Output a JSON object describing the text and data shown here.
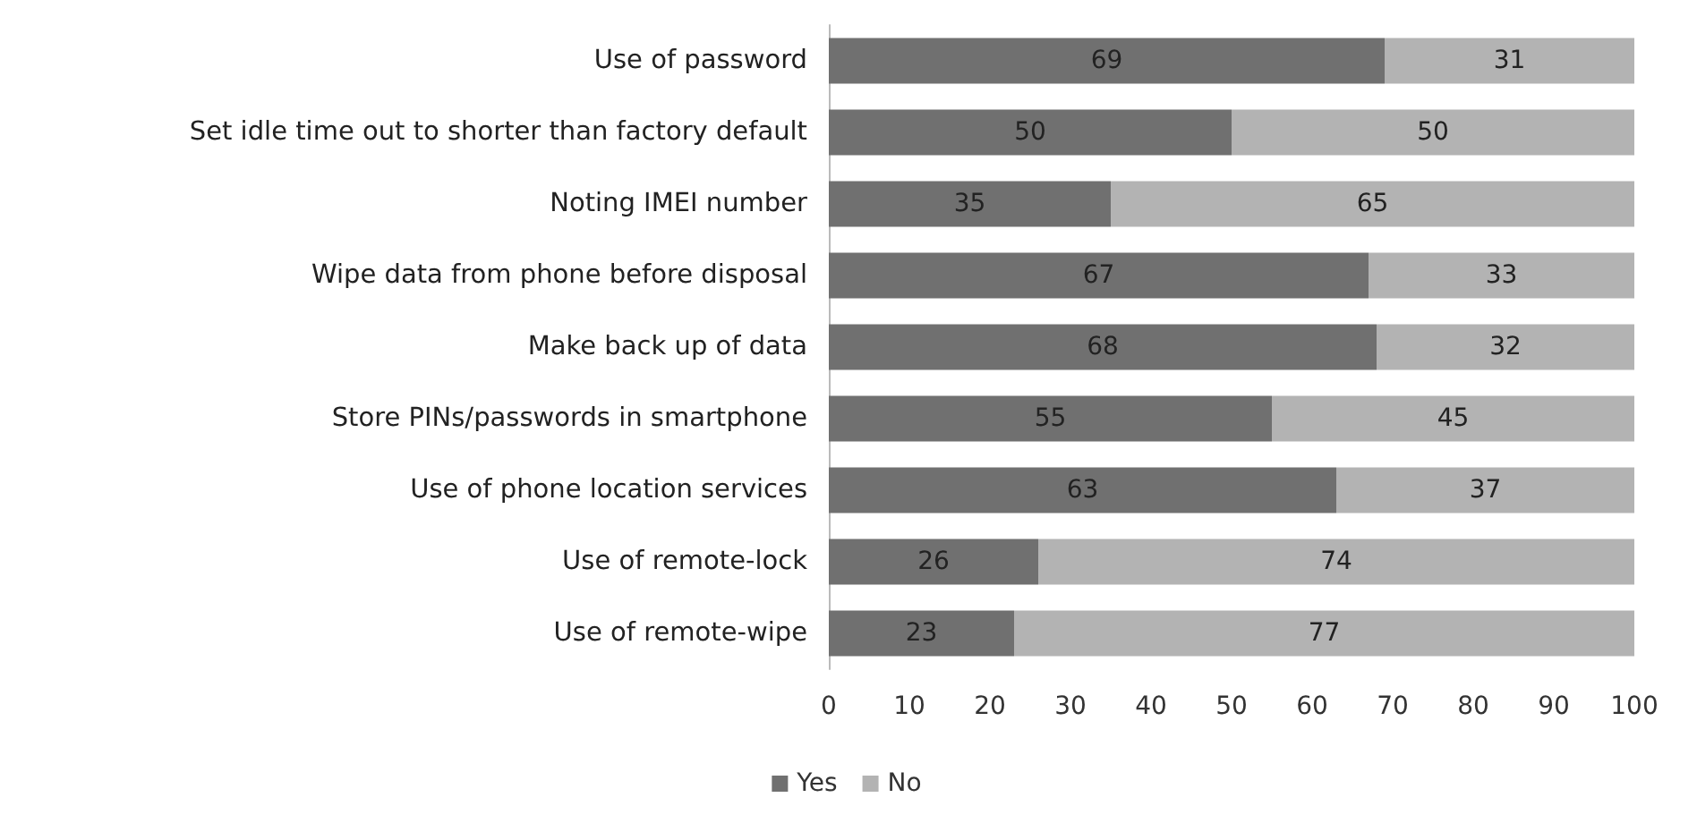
{
  "chart_data": {
    "type": "bar",
    "orientation": "horizontal",
    "stacked": true,
    "categories": [
      "Use of password",
      "Set idle time out to shorter than factory default",
      "Noting IMEI number",
      "Wipe data from phone before disposal",
      "Make back up of data",
      "Store PINs/passwords in smartphone",
      "Use of phone location services",
      "Use of remote-lock",
      "Use of remote-wipe"
    ],
    "series": [
      {
        "name": "Yes",
        "color": "#707070",
        "values": [
          69,
          50,
          35,
          67,
          68,
          55,
          63,
          26,
          23
        ]
      },
      {
        "name": "No",
        "color": "#b3b3b3",
        "values": [
          31,
          50,
          65,
          33,
          32,
          45,
          37,
          74,
          77
        ]
      }
    ],
    "xlim": [
      0,
      100
    ],
    "xticks": [
      0,
      10,
      20,
      30,
      40,
      50,
      60,
      70,
      80,
      90,
      100
    ],
    "grid": false,
    "legend": "bottom",
    "data_labels": true
  }
}
